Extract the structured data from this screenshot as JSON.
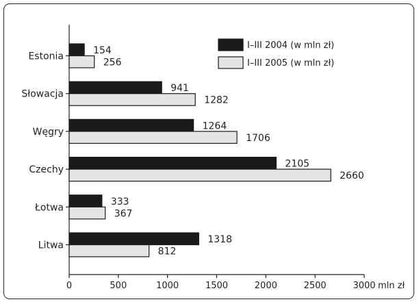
{
  "chart_data": {
    "type": "bar",
    "orientation": "horizontal",
    "categories": [
      "Estonia",
      "Słowacja",
      "Węgry",
      "Czechy",
      "Łotwa",
      "Litwa"
    ],
    "series": [
      {
        "name": "I–III 2004 (w mln zł)",
        "values": [
          154,
          941,
          1264,
          2105,
          333,
          1318
        ],
        "color": "#1a1a1a"
      },
      {
        "name": "I–III 2005 (w mln zł)",
        "values": [
          256,
          1282,
          1706,
          2660,
          367,
          812
        ],
        "color": "#e4e4e4"
      }
    ],
    "xlim": [
      0,
      3000
    ],
    "x_ticks": [
      "0",
      "500",
      "1000",
      "1500",
      "2000",
      "2500",
      "3000"
    ],
    "x_unit_label": "mln zł",
    "grid": false,
    "legend_position": "top-right"
  }
}
